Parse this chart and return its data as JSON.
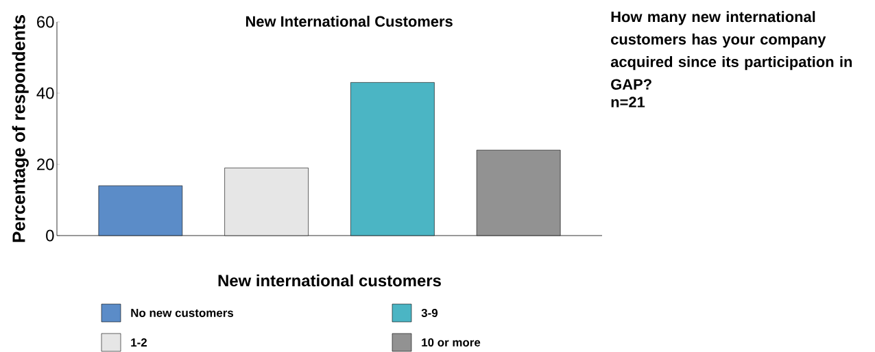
{
  "chart_data": {
    "type": "bar",
    "title": "New International Customers",
    "xlabel": "New international customers",
    "ylabel": "Percentage of respondents",
    "categories": [
      null,
      null,
      null,
      null
    ],
    "series": [
      {
        "name": "No new customers",
        "color": "#5b8cc8",
        "values": [
          14,
          null,
          null,
          null
        ]
      },
      {
        "name": "1-2",
        "color": "#e6e6e6",
        "values": [
          null,
          19,
          null,
          null
        ]
      },
      {
        "name": "3-9",
        "color": "#4bb5c4",
        "values": [
          null,
          null,
          43,
          null
        ]
      },
      {
        "name": "10 or more",
        "color": "#929292",
        "values": [
          null,
          null,
          null,
          24
        ]
      }
    ],
    "ylim": [
      0,
      60
    ],
    "yticks": [
      0,
      20,
      40,
      60
    ],
    "grid": false,
    "legend": "bottom",
    "annotations": [
      "How many new international customers has your company acquired since its participation in GAP?",
      "n=21"
    ]
  }
}
